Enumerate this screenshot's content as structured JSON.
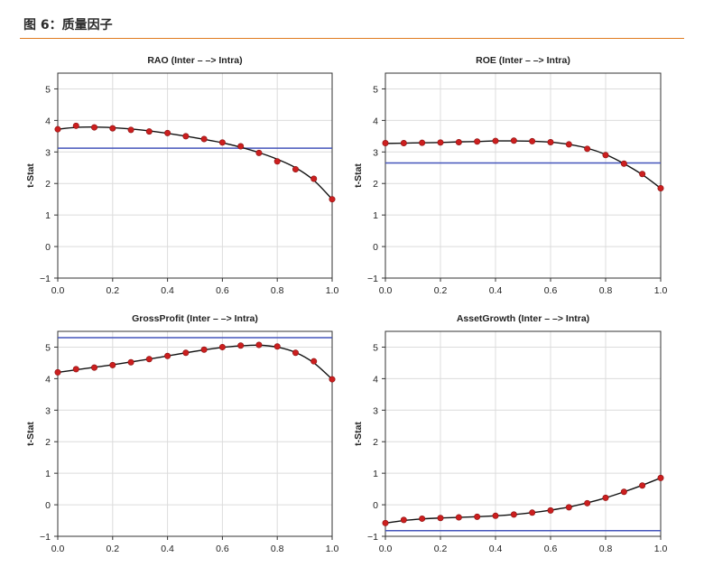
{
  "figure": {
    "title": "图 6：质量因子"
  },
  "chart_data": [
    {
      "type": "line",
      "title": "RAO (Inter – –> Intra)",
      "ylabel": "t-Stat",
      "xlabel": "",
      "xlim": [
        0.0,
        1.0
      ],
      "ylim": [
        -1,
        5.5
      ],
      "x_ticks": [
        "0.0",
        "0.2",
        "0.4",
        "0.6",
        "0.8",
        "1.0"
      ],
      "y_ticks": [
        "−1",
        "0",
        "1",
        "2",
        "3",
        "4",
        "5"
      ],
      "grid": true,
      "reference_line": 3.12,
      "points_x": [
        0.0,
        0.0667,
        0.1333,
        0.2,
        0.2667,
        0.3333,
        0.4,
        0.4667,
        0.5333,
        0.6,
        0.6667,
        0.7333,
        0.8,
        0.8667,
        0.9333,
        1.0
      ],
      "points_y": [
        3.72,
        3.83,
        3.78,
        3.75,
        3.7,
        3.65,
        3.6,
        3.5,
        3.41,
        3.3,
        3.18,
        2.97,
        2.7,
        2.45,
        2.15,
        1.5
      ],
      "fit_y": [
        3.72,
        3.78,
        3.79,
        3.77,
        3.73,
        3.67,
        3.59,
        3.5,
        3.4,
        3.29,
        3.15,
        2.98,
        2.77,
        2.5,
        2.1,
        1.5
      ]
    },
    {
      "type": "line",
      "title": "ROE (Inter – –> Intra)",
      "ylabel": "t-Stat",
      "xlabel": "",
      "xlim": [
        0.0,
        1.0
      ],
      "ylim": [
        -1,
        5.5
      ],
      "x_ticks": [
        "0.0",
        "0.2",
        "0.4",
        "0.6",
        "0.8",
        "1.0"
      ],
      "y_ticks": [
        "−1",
        "0",
        "1",
        "2",
        "3",
        "4",
        "5"
      ],
      "grid": true,
      "reference_line": 2.65,
      "points_x": [
        0.0,
        0.0667,
        0.1333,
        0.2,
        0.2667,
        0.3333,
        0.4,
        0.4667,
        0.5333,
        0.6,
        0.6667,
        0.7333,
        0.8,
        0.8667,
        0.9333,
        1.0
      ],
      "points_y": [
        3.28,
        3.28,
        3.29,
        3.3,
        3.31,
        3.33,
        3.35,
        3.36,
        3.34,
        3.31,
        3.24,
        3.1,
        2.9,
        2.63,
        2.3,
        1.85
      ],
      "fit_y": [
        3.27,
        3.28,
        3.29,
        3.3,
        3.32,
        3.33,
        3.35,
        3.35,
        3.34,
        3.31,
        3.24,
        3.12,
        2.92,
        2.63,
        2.28,
        1.85
      ]
    },
    {
      "type": "line",
      "title": "GrossProfit (Inter – –> Intra)",
      "ylabel": "t-Stat",
      "xlabel": "",
      "xlim": [
        0.0,
        1.0
      ],
      "ylim": [
        -1,
        5.5
      ],
      "x_ticks": [
        "0.0",
        "0.2",
        "0.4",
        "0.6",
        "0.8",
        "1.0"
      ],
      "y_ticks": [
        "−1",
        "0",
        "1",
        "2",
        "3",
        "4",
        "5"
      ],
      "grid": true,
      "reference_line": 5.3,
      "points_x": [
        0.0,
        0.0667,
        0.1333,
        0.2,
        0.2667,
        0.3333,
        0.4,
        0.4667,
        0.5333,
        0.6,
        0.6667,
        0.7333,
        0.8,
        0.8667,
        0.9333,
        1.0
      ],
      "points_y": [
        4.2,
        4.3,
        4.35,
        4.43,
        4.52,
        4.62,
        4.72,
        4.82,
        4.92,
        5.0,
        5.05,
        5.07,
        5.02,
        4.82,
        4.55,
        3.98
      ],
      "fit_y": [
        4.2,
        4.28,
        4.36,
        4.44,
        4.53,
        4.62,
        4.72,
        4.82,
        4.91,
        4.99,
        5.04,
        5.06,
        5.0,
        4.83,
        4.5,
        3.98
      ]
    },
    {
      "type": "line",
      "title": "AssetGrowth (Inter – –> Intra)",
      "ylabel": "t-Stat",
      "xlabel": "",
      "xlim": [
        0.0,
        1.0
      ],
      "ylim": [
        -1,
        5.5
      ],
      "x_ticks": [
        "0.0",
        "0.2",
        "0.4",
        "0.6",
        "0.8",
        "1.0"
      ],
      "y_ticks": [
        "−1",
        "0",
        "1",
        "2",
        "3",
        "4",
        "5"
      ],
      "grid": true,
      "reference_line": -0.82,
      "points_x": [
        0.0,
        0.0667,
        0.1333,
        0.2,
        0.2667,
        0.3333,
        0.4,
        0.4667,
        0.5333,
        0.6,
        0.6667,
        0.7333,
        0.8,
        0.8667,
        0.9333,
        1.0
      ],
      "points_y": [
        -0.58,
        -0.48,
        -0.44,
        -0.42,
        -0.4,
        -0.38,
        -0.35,
        -0.31,
        -0.25,
        -0.18,
        -0.08,
        0.05,
        0.22,
        0.41,
        0.61,
        0.85
      ],
      "fit_y": [
        -0.58,
        -0.5,
        -0.45,
        -0.42,
        -0.4,
        -0.38,
        -0.35,
        -0.31,
        -0.25,
        -0.17,
        -0.07,
        0.06,
        0.22,
        0.41,
        0.62,
        0.85
      ]
    }
  ]
}
